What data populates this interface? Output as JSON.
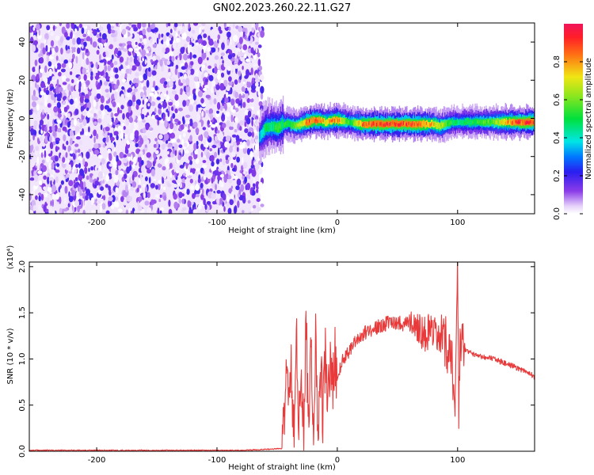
{
  "figure": {
    "title": "GN02.2023.260.22.11.G27"
  },
  "chart_data": [
    {
      "type": "heatmap",
      "title": "GN02.2023.260.22.11.G27",
      "xlabel": "Height of straight line (km)",
      "ylabel": "Frequency (Hz)",
      "xlim": [
        -256,
        164
      ],
      "ylim": [
        -50,
        50
      ],
      "x_ticks": [
        -200,
        -100,
        0,
        100
      ],
      "y_ticks": [
        -40,
        -20,
        0,
        20,
        40
      ],
      "colorbar": {
        "label": "Normalized spectral amplitude",
        "range": [
          0.0,
          1.0
        ],
        "ticks": [
          0.0,
          0.2,
          0.4,
          0.6,
          0.8
        ],
        "colormap": "white-purple-blue-cyan-green-yellow-red-magenta"
      },
      "regions": [
        {
          "name": "noise",
          "x_range": [
            -256,
            -65
          ],
          "freq_range": [
            -50,
            50
          ],
          "amplitude_range": [
            0.0,
            0.2
          ]
        }
      ],
      "ridge": {
        "x": [
          -65,
          -60,
          -55,
          -50,
          -45,
          -40,
          -35,
          -30,
          -25,
          -20,
          -15,
          -10,
          -5,
          0,
          10,
          20,
          30,
          40,
          50,
          60,
          70,
          80,
          85,
          90,
          95,
          100,
          110,
          120,
          130,
          140,
          150,
          160
        ],
        "frequency": [
          -10,
          -5,
          -4,
          -5,
          -3,
          -3,
          -4,
          -3,
          -2,
          -1,
          -1,
          -2,
          -1,
          -1,
          -2,
          -3,
          -3,
          -3,
          -3,
          -3,
          -3,
          -3,
          -4,
          -3,
          -2,
          -2,
          -2,
          -2,
          -2,
          -2,
          -2,
          -2
        ],
        "amplitude": [
          0.35,
          0.5,
          0.45,
          0.55,
          0.5,
          0.55,
          0.6,
          0.7,
          0.9,
          0.85,
          0.85,
          0.75,
          0.8,
          0.85,
          0.5,
          0.85,
          0.9,
          0.9,
          0.9,
          0.9,
          0.85,
          0.75,
          0.7,
          0.6,
          0.5,
          0.45,
          0.5,
          0.55,
          0.6,
          0.8,
          0.9,
          0.9
        ]
      },
      "grid": false
    },
    {
      "type": "line",
      "xlabel": "Height of straight line (km)",
      "ylabel": "SNR (10 * v/v)",
      "y_multiplier": "(x10⁴)",
      "xlim": [
        -256,
        164
      ],
      "ylim": [
        0.0,
        2.05
      ],
      "x_ticks": [
        -200,
        -100,
        0,
        100
      ],
      "y_ticks": [
        "0.0",
        "0.5",
        "1.0",
        "1.5",
        "2.0"
      ],
      "color": "#e83a3a",
      "series": [
        {
          "x": [
            -256,
            -230,
            -200,
            -170,
            -140,
            -110,
            -80,
            -60,
            -46,
            -44,
            -42,
            -40,
            -38,
            -36,
            -34,
            -32,
            -30,
            -28,
            -26,
            -24,
            -22,
            -20,
            -18,
            -16,
            -14,
            -12,
            -10,
            -8,
            -6,
            -4,
            -2,
            0,
            5,
            10,
            15,
            20,
            25,
            30,
            35,
            40,
            45,
            50,
            55,
            60,
            65,
            70,
            75,
            80,
            85,
            90,
            95,
            98,
            100,
            101,
            102,
            104,
            106,
            108,
            110,
            120,
            130,
            140,
            150,
            160,
            164
          ],
          "y": [
            0.01,
            0.01,
            0.01,
            0.01,
            0.01,
            0.01,
            0.01,
            0.02,
            0.03,
            0.25,
            1.15,
            0.35,
            0.9,
            0.1,
            1.2,
            0.3,
            0.95,
            0.05,
            1.4,
            0.35,
            1.15,
            0.05,
            1.3,
            0.1,
            0.9,
            0.4,
            1.0,
            0.55,
            0.95,
            0.65,
            1.05,
            0.8,
            1.0,
            1.1,
            1.2,
            1.25,
            1.3,
            1.33,
            1.35,
            1.38,
            1.4,
            1.4,
            1.38,
            1.4,
            1.38,
            1.3,
            1.28,
            1.22,
            1.2,
            1.15,
            1.12,
            0.4,
            2.0,
            0.32,
            1.1,
            1.15,
            1.1,
            1.08,
            1.07,
            1.03,
            1.0,
            0.95,
            0.9,
            0.85,
            0.8
          ]
        }
      ],
      "grid": false
    }
  ]
}
